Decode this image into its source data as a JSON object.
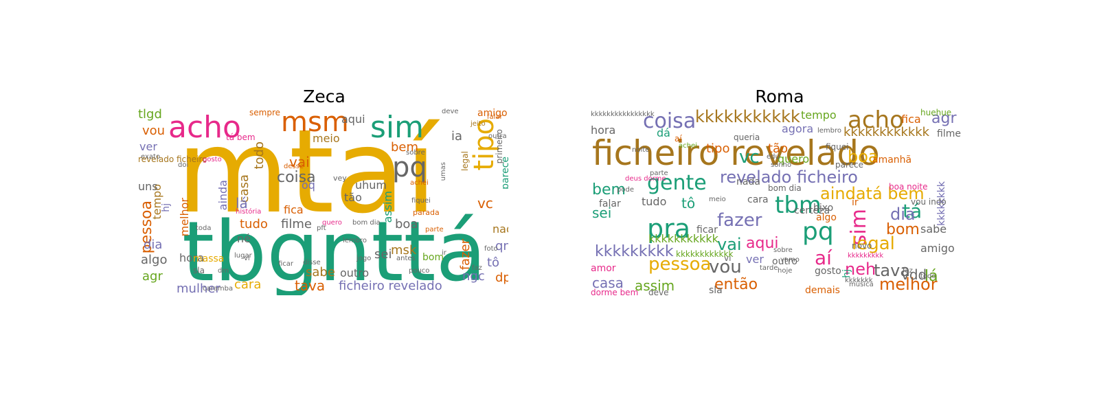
{
  "left_panel": {
    "title": "Zeca",
    "words": [
      {
        "text": "mtaí",
        "color": "#e6ab02",
        "rotate": false
      },
      {
        "text": "tbgnttá",
        "color": "#1b9e77",
        "rotate": false
      },
      {
        "text": "acho",
        "color": "#e7298a",
        "rotate": false
      },
      {
        "text": "msm",
        "color": "#d95f02",
        "rotate": false
      },
      {
        "text": "sim",
        "color": "#1b9e77",
        "rotate": false
      },
      {
        "text": "tipo",
        "color": "#e6ab02",
        "rotate": true
      },
      {
        "text": "pq",
        "color": "#666666",
        "rotate": false
      },
      {
        "text": "vai",
        "color": "#d95f02",
        "rotate": false
      },
      {
        "text": "coisa",
        "color": "#666666",
        "rotate": false
      },
      {
        "text": "oq",
        "color": "#7570b3",
        "rotate": false
      },
      {
        "text": "uhum",
        "color": "#666666",
        "rotate": false
      },
      {
        "text": "tão",
        "color": "#666666",
        "rotate": false
      },
      {
        "text": "fica",
        "color": "#d95f02",
        "rotate": false
      },
      {
        "text": "filme",
        "color": "#666666",
        "rotate": false
      },
      {
        "text": "tudo",
        "color": "#d95f02",
        "rotate": false
      },
      {
        "text": "casa",
        "color": "#a6761d",
        "rotate": true
      },
      {
        "text": "todo",
        "color": "#a6761d",
        "rotate": true
      },
      {
        "text": "lá",
        "color": "#7570b3",
        "rotate": false
      },
      {
        "text": "né",
        "color": "#666666",
        "rotate": false
      },
      {
        "text": "ainda",
        "color": "#7570b3",
        "rotate": true
      },
      {
        "text": "melhor",
        "color": "#d95f02",
        "rotate": true
      },
      {
        "text": "pessoa",
        "color": "#d95f02",
        "rotate": true
      },
      {
        "text": "tempo",
        "color": "#a6761d",
        "rotate": true
      },
      {
        "text": "hj",
        "color": "#7570b3",
        "rotate": true
      },
      {
        "text": "tlgd",
        "color": "#66a61e",
        "rotate": false
      },
      {
        "text": "vou",
        "color": "#d95f02",
        "rotate": false
      },
      {
        "text": "ver",
        "color": "#7570b3",
        "rotate": false
      },
      {
        "text": "uns",
        "color": "#666666",
        "rotate": false
      },
      {
        "text": "dia",
        "color": "#7570b3",
        "rotate": false
      },
      {
        "text": "algo",
        "color": "#666666",
        "rotate": false
      },
      {
        "text": "agr",
        "color": "#66a61e",
        "rotate": false
      },
      {
        "text": "hora",
        "color": "#666666",
        "rotate": false
      },
      {
        "text": "mulher",
        "color": "#7570b3",
        "rotate": false
      },
      {
        "text": "cara",
        "color": "#e6ab02",
        "rotate": false
      },
      {
        "text": "tava",
        "color": "#d95f02",
        "rotate": false
      },
      {
        "text": "sabe",
        "color": "#a6761d",
        "rotate": false
      },
      {
        "text": "outro",
        "color": "#666666",
        "rotate": false
      },
      {
        "text": "sei",
        "color": "#666666",
        "rotate": false
      },
      {
        "text": "msk",
        "color": "#a6761d",
        "rotate": false
      },
      {
        "text": "boa",
        "color": "#666666",
        "rotate": false
      },
      {
        "text": "assim",
        "color": "#1b9e77",
        "rotate": true
      },
      {
        "text": "meio",
        "color": "#a6761d",
        "rotate": false
      },
      {
        "text": "aqui",
        "color": "#666666",
        "rotate": false
      },
      {
        "text": "bem",
        "color": "#d95f02",
        "rotate": false
      },
      {
        "text": "ia",
        "color": "#666666",
        "rotate": false
      },
      {
        "text": "vc",
        "color": "#d95f02",
        "rotate": false
      },
      {
        "text": "fazer",
        "color": "#d95f02",
        "rotate": true
      },
      {
        "text": "nada",
        "color": "#a6761d",
        "rotate": false
      },
      {
        "text": "qnd",
        "color": "#7570b3",
        "rotate": false
      },
      {
        "text": "tô",
        "color": "#7570b3",
        "rotate": false
      },
      {
        "text": "dp",
        "color": "#d95f02",
        "rotate": false
      },
      {
        "text": "ngc",
        "color": "#7570b3",
        "rotate": false
      },
      {
        "text": "parece",
        "color": "#1b9e77",
        "rotate": true
      },
      {
        "text": "amigo",
        "color": "#d95f02",
        "rotate": false
      },
      {
        "text": "ficheiro revelado",
        "color": "#7570b3",
        "rotate": false
      },
      {
        "text": "massa",
        "color": "#e6ab02",
        "rotate": false
      },
      {
        "text": "sla",
        "color": "#666666",
        "rotate": false
      },
      {
        "text": "dm",
        "color": "#666666",
        "rotate": false
      },
      {
        "text": "vi",
        "color": "#666666",
        "rotate": false
      },
      {
        "text": "parada",
        "color": "#d95f02",
        "rotate": false
      },
      {
        "text": "vey",
        "color": "#666666",
        "rotate": false
      },
      {
        "text": "sempre",
        "color": "#d95f02",
        "rotate": false
      },
      {
        "text": "tá bem",
        "color": "#e7298a",
        "rotate": false
      },
      {
        "text": "revelado ficheiro",
        "color": "#a6761d",
        "rotate": false
      },
      {
        "text": "história",
        "color": "#e7298a",
        "rotate": false
      },
      {
        "text": "bom dia",
        "color": "#666666",
        "rotate": false
      },
      {
        "text": "quero",
        "color": "#e7298a",
        "rotate": false
      },
      {
        "text": "achei",
        "color": "#d95f02",
        "rotate": false
      },
      {
        "text": "fiquei",
        "color": "#666666",
        "rotate": false
      },
      {
        "text": "exato",
        "color": "#666666",
        "rotate": false
      },
      {
        "text": "doi",
        "color": "#666666",
        "rotate": false
      },
      {
        "text": "gosto",
        "color": "#e7298a",
        "rotate": false
      },
      {
        "text": "desse",
        "color": "#d95f02",
        "rotate": false
      },
      {
        "text": "lugar",
        "color": "#666666",
        "rotate": false
      },
      {
        "text": "antes",
        "color": "#666666",
        "rotate": false
      },
      {
        "text": "jogo",
        "color": "#666666",
        "rotate": false
      },
      {
        "text": "disse",
        "color": "#666666",
        "rotate": false
      },
      {
        "text": "ficar",
        "color": "#666666",
        "rotate": false
      },
      {
        "text": "outra",
        "color": "#666666",
        "rotate": false
      },
      {
        "text": "falar",
        "color": "#d95f02",
        "rotate": false
      },
      {
        "text": "jeito",
        "color": "#a6761d",
        "rotate": false
      },
      {
        "text": "foto",
        "color": "#666666",
        "rotate": false
      },
      {
        "text": "faz",
        "color": "#666666",
        "rotate": false
      },
      {
        "text": "pouco",
        "color": "#666666",
        "rotate": false
      },
      {
        "text": "sobre",
        "color": "#666666",
        "rotate": false
      },
      {
        "text": "toda",
        "color": "#666666",
        "rotate": false
      },
      {
        "text": "deve",
        "color": "#666666",
        "rotate": false
      },
      {
        "text": "caramba",
        "color": "#666666",
        "rotate": false
      },
      {
        "text": "parte",
        "color": "#d95f02",
        "rotate": false
      },
      {
        "text": "primeiro",
        "color": "#666666",
        "rotate": true
      },
      {
        "text": "legal",
        "color": "#a6761d",
        "rotate": true
      },
      {
        "text": "umas",
        "color": "#666666",
        "rotate": true
      },
      {
        "text": "bom",
        "color": "#66a61e",
        "rotate": false
      },
      {
        "text": "ir",
        "color": "#666666",
        "rotate": false
      },
      {
        "text": "pft",
        "color": "#666666",
        "rotate": false
      },
      {
        "text": "lembro",
        "color": "#666666",
        "rotate": false
      }
    ]
  },
  "right_panel": {
    "title": "Roma",
    "words": [
      {
        "text": "ficheiro revelado",
        "color": "#a6761d",
        "rotate": false
      },
      {
        "text": "kkkkkkkkkkk",
        "color": "#a6761d",
        "rotate": false
      },
      {
        "text": "acho",
        "color": "#a6761d",
        "rotate": false
      },
      {
        "text": "coisa",
        "color": "#7570b3",
        "rotate": false
      },
      {
        "text": "agr",
        "color": "#7570b3",
        "rotate": false
      },
      {
        "text": "gente",
        "color": "#1b9e77",
        "rotate": false
      },
      {
        "text": "revelado ficheiro",
        "color": "#7570b3",
        "rotate": false
      },
      {
        "text": "pra",
        "color": "#1b9e77",
        "rotate": false
      },
      {
        "text": "pq",
        "color": "#1b9e77",
        "rotate": false
      },
      {
        "text": "tbm",
        "color": "#1b9e77",
        "rotate": false
      },
      {
        "text": "tá",
        "color": "#1b9e77",
        "rotate": false
      },
      {
        "text": "sim",
        "color": "#e7298a",
        "rotate": true
      },
      {
        "text": "fazer",
        "color": "#7570b3",
        "rotate": false
      },
      {
        "text": "vai",
        "color": "#1b9e77",
        "rotate": false
      },
      {
        "text": "aqui",
        "color": "#e7298a",
        "rotate": false
      },
      {
        "text": "pessoa",
        "color": "#e6ab02",
        "rotate": false
      },
      {
        "text": "vou",
        "color": "#666666",
        "rotate": false
      },
      {
        "text": "aí",
        "color": "#e7298a",
        "rotate": false
      },
      {
        "text": "neh",
        "color": "#e7298a",
        "rotate": false
      },
      {
        "text": "melhor",
        "color": "#d95f02",
        "rotate": false
      },
      {
        "text": "casa",
        "color": "#7570b3",
        "rotate": false
      },
      {
        "text": "assim",
        "color": "#66a61e",
        "rotate": false
      },
      {
        "text": "então",
        "color": "#d95f02",
        "rotate": false
      },
      {
        "text": "ver",
        "color": "#7570b3",
        "rotate": false
      },
      {
        "text": "tava",
        "color": "#666666",
        "rotate": false
      },
      {
        "text": "lá",
        "color": "#66a61e",
        "rotate": false
      },
      {
        "text": "vdd",
        "color": "#666666",
        "rotate": false
      },
      {
        "text": "legal",
        "color": "#e6ab02",
        "rotate": false
      },
      {
        "text": "bom",
        "color": "#d95f02",
        "rotate": false
      },
      {
        "text": "dia",
        "color": "#7570b3",
        "rotate": false
      },
      {
        "text": "aindatá bem",
        "color": "#e6ab02",
        "rotate": false
      },
      {
        "text": "boa",
        "color": "#e6ab02",
        "rotate": false
      },
      {
        "text": "vc",
        "color": "#1b9e77",
        "rotate": false
      },
      {
        "text": "tipo",
        "color": "#d95f02",
        "rotate": false
      },
      {
        "text": "quero",
        "color": "#66a61e",
        "rotate": false
      },
      {
        "text": "tempo",
        "color": "#66a61e",
        "rotate": false
      },
      {
        "text": "fica",
        "color": "#d95f02",
        "rotate": false
      },
      {
        "text": "agora",
        "color": "#7570b3",
        "rotate": false
      },
      {
        "text": "tão",
        "color": "#d95f02",
        "rotate": false
      },
      {
        "text": "amanhã",
        "color": "#d95f02",
        "rotate": false
      },
      {
        "text": "kkkkkkkkkkkk",
        "color": "#a6761d",
        "rotate": false
      },
      {
        "text": "kkkkkkkkk",
        "color": "#7570b3",
        "rotate": false
      },
      {
        "text": "kkkkkkkkkkk",
        "color": "#66a61e",
        "rotate": false
      },
      {
        "text": "kkkkkkkk",
        "color": "#7570b3",
        "rotate": true
      },
      {
        "text": "bem",
        "color": "#1b9e77",
        "rotate": false
      },
      {
        "text": "sei",
        "color": "#1b9e77",
        "rotate": false
      },
      {
        "text": "hora",
        "color": "#666666",
        "rotate": false
      },
      {
        "text": "falar",
        "color": "#666666",
        "rotate": false
      },
      {
        "text": "tudo",
        "color": "#666666",
        "rotate": false
      },
      {
        "text": "tô",
        "color": "#1b9e77",
        "rotate": false
      },
      {
        "text": "cara",
        "color": "#666666",
        "rotate": false
      },
      {
        "text": "nada",
        "color": "#666666",
        "rotate": false
      },
      {
        "text": "bom dia",
        "color": "#666666",
        "rotate": false
      },
      {
        "text": "certeza",
        "color": "#666666",
        "rotate": false
      },
      {
        "text": "ficar",
        "color": "#666666",
        "rotate": false
      },
      {
        "text": "algo",
        "color": "#d95f02",
        "rotate": false
      },
      {
        "text": "bixo",
        "color": "#666666",
        "rotate": false
      },
      {
        "text": "ir",
        "color": "#d95f02",
        "rotate": false
      },
      {
        "text": "boa noite",
        "color": "#e7298a",
        "rotate": false
      },
      {
        "text": "vou indo",
        "color": "#666666",
        "rotate": false
      },
      {
        "text": "sabe",
        "color": "#666666",
        "rotate": false
      },
      {
        "text": "amigo",
        "color": "#666666",
        "rotate": false
      },
      {
        "text": "outro",
        "color": "#666666",
        "rotate": false
      },
      {
        "text": "gosto",
        "color": "#666666",
        "rotate": false
      },
      {
        "text": "novo",
        "color": "#666666",
        "rotate": false
      },
      {
        "text": "amor",
        "color": "#e7298a",
        "rotate": false
      },
      {
        "text": "demais",
        "color": "#d95f02",
        "rotate": false
      },
      {
        "text": "dorme bem",
        "color": "#e7298a",
        "rotate": false
      },
      {
        "text": "deve",
        "color": "#666666",
        "rotate": false
      },
      {
        "text": "sla",
        "color": "#666666",
        "rotate": false
      },
      {
        "text": "vi",
        "color": "#666666",
        "rotate": false
      },
      {
        "text": "dá",
        "color": "#1b9e77",
        "rotate": false
      },
      {
        "text": "aí",
        "color": "#d95f02",
        "rotate": false
      },
      {
        "text": "fiquei",
        "color": "#666666",
        "rotate": false
      },
      {
        "text": "filme",
        "color": "#666666",
        "rotate": false
      },
      {
        "text": "parece",
        "color": "#666666",
        "rotate": false
      },
      {
        "text": "kkkkkkkkkkkkkkkk",
        "color": "#666666",
        "rotate": false
      },
      {
        "text": "kkkkkkkkkkkk",
        "color": "#66a61e",
        "rotate": false
      },
      {
        "text": "kkkkkkkkk",
        "color": "#e7298a",
        "rotate": false
      },
      {
        "text": "tarde",
        "color": "#666666",
        "rotate": false
      },
      {
        "text": "hoje",
        "color": "#666666",
        "rotate": false
      },
      {
        "text": "música",
        "color": "#666666",
        "rotate": false
      },
      {
        "text": "faz",
        "color": "#666666",
        "rotate": false
      },
      {
        "text": "todo",
        "color": "#666666",
        "rotate": false
      },
      {
        "text": "hj",
        "color": "#1b9e77",
        "rotate": true
      },
      {
        "text": "queria",
        "color": "#666666",
        "rotate": false
      },
      {
        "text": "noite",
        "color": "#666666",
        "rotate": false
      },
      {
        "text": "achei",
        "color": "#66a61e",
        "rotate": false
      },
      {
        "text": "parte",
        "color": "#666666",
        "rotate": false
      },
      {
        "text": "deus dorme",
        "color": "#e7298a",
        "rotate": false
      },
      {
        "text": "pode",
        "color": "#666666",
        "rotate": false
      },
      {
        "text": "meio",
        "color": "#666666",
        "rotate": false
      },
      {
        "text": "edu",
        "color": "#666666",
        "rotate": false
      },
      {
        "text": "sonho",
        "color": "#666666",
        "rotate": false
      },
      {
        "text": "lembro",
        "color": "#666666",
        "rotate": false
      },
      {
        "text": "vamo",
        "color": "#666666",
        "rotate": false
      },
      {
        "text": "sobre",
        "color": "#666666",
        "rotate": false
      },
      {
        "text": "huehue",
        "color": "#66a61e",
        "rotate": false
      },
      {
        "text": "kkkkkkk",
        "color": "#666666",
        "rotate": false
      }
    ]
  }
}
